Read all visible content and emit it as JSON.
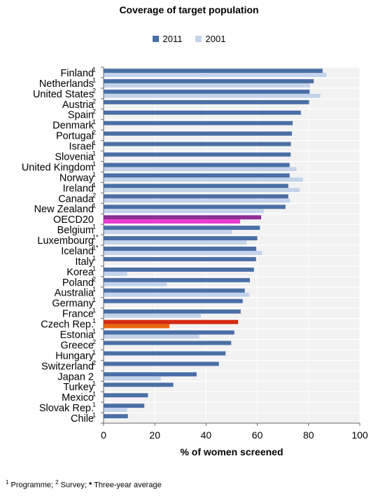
{
  "chart_data": {
    "type": "bar",
    "orientation": "horizontal",
    "title": "Coverage of target population",
    "xlabel": "% of women screened",
    "ylabel": "",
    "xlim": [
      0,
      100
    ],
    "xticks": [
      0,
      20,
      40,
      60,
      80,
      100
    ],
    "grid": true,
    "legend": "top-center",
    "categories": [
      "Finland",
      "Netherlands",
      "United States",
      "Austria",
      "Spain",
      "Denmark",
      "Portugal",
      "Israel",
      "Slovenia",
      "United Kingdom",
      "Norway",
      "Ireland",
      "Canada",
      "New Zealand",
      "OECD20",
      "Belgium",
      "Luxembourg",
      "Iceland",
      "Italy",
      "Korea",
      "Poland",
      "Australia",
      "Germany",
      "France",
      "Czech Rep.",
      "Estonia",
      "Greece",
      "Hungary",
      "Switzerland",
      "Japan 2",
      "Turkey",
      "Mexico",
      "Slovak Rep.",
      "Chile"
    ],
    "category_marks": [
      "1",
      "1",
      "2",
      "2",
      "2",
      "1",
      "2",
      "1",
      "1",
      "1",
      "1",
      "1",
      "2",
      "1",
      "",
      "1",
      "1*",
      "1*",
      "1",
      "1",
      "2",
      "1",
      "1",
      "1",
      "1",
      "1",
      "2",
      "1",
      "2",
      "",
      "1",
      "1",
      "1",
      "1"
    ],
    "series": [
      {
        "name": "2011",
        "color": "#4a6fa5",
        "values": [
          85.5,
          82,
          80.4,
          80.2,
          77,
          73.8,
          73.5,
          73.1,
          73,
          72.6,
          72.6,
          72.1,
          72.1,
          71,
          61.5,
          61,
          60,
          59.6,
          59.5,
          58.7,
          57.1,
          55.1,
          54.3,
          53.5,
          52.5,
          51,
          49.8,
          47.6,
          45,
          36.3,
          27.2,
          17.3,
          15.9,
          9.5
        ]
      },
      {
        "name": "2001",
        "color": "#c3d3eb",
        "values": [
          87,
          80.5,
          84.6,
          null,
          null,
          null,
          null,
          null,
          null,
          75.3,
          77.8,
          76.5,
          72.8,
          62.5,
          53.3,
          50,
          55.8,
          61.8,
          null,
          9.2,
          24.7,
          56.9,
          null,
          38,
          25.7,
          37.3,
          null,
          null,
          null,
          22.3,
          null,
          null,
          9.2,
          null
        ]
      }
    ],
    "highlight": {
      "OECD20": {
        "2011": "#8e2e94",
        "2001": "#ec3ad4"
      },
      "Czech Rep.": {
        "2011": "#d42a12",
        "2001": "#e8660f"
      }
    }
  },
  "footnote": {
    "mark1": "1",
    "text1": " Programme; ",
    "mark2": "2",
    "text2": " Survey; ",
    "mark3": "*",
    "text3": " Three-year average"
  }
}
